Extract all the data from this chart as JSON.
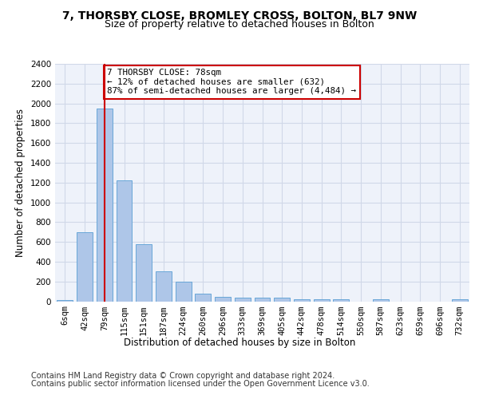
{
  "title_line1": "7, THORSBY CLOSE, BROMLEY CROSS, BOLTON, BL7 9NW",
  "title_line2": "Size of property relative to detached houses in Bolton",
  "xlabel": "Distribution of detached houses by size in Bolton",
  "ylabel": "Number of detached properties",
  "categories": [
    "6sqm",
    "42sqm",
    "79sqm",
    "115sqm",
    "151sqm",
    "187sqm",
    "224sqm",
    "260sqm",
    "296sqm",
    "333sqm",
    "369sqm",
    "405sqm",
    "442sqm",
    "478sqm",
    "514sqm",
    "550sqm",
    "587sqm",
    "623sqm",
    "659sqm",
    "696sqm",
    "732sqm"
  ],
  "values": [
    15,
    700,
    1950,
    1220,
    575,
    305,
    200,
    80,
    47,
    38,
    35,
    35,
    20,
    20,
    20,
    0,
    20,
    0,
    0,
    0,
    20
  ],
  "bar_color": "#aec6e8",
  "bar_edge_color": "#5a9fd4",
  "highlight_index": 2,
  "highlight_color": "#cc0000",
  "annotation_text": "7 THORSBY CLOSE: 78sqm\n← 12% of detached houses are smaller (632)\n87% of semi-detached houses are larger (4,484) →",
  "annotation_box_color": "#ffffff",
  "annotation_box_edgecolor": "#cc0000",
  "ylim": [
    0,
    2400
  ],
  "yticks": [
    0,
    200,
    400,
    600,
    800,
    1000,
    1200,
    1400,
    1600,
    1800,
    2000,
    2200,
    2400
  ],
  "grid_color": "#d0d8e8",
  "background_color": "#eef2fa",
  "footer_line1": "Contains HM Land Registry data © Crown copyright and database right 2024.",
  "footer_line2": "Contains public sector information licensed under the Open Government Licence v3.0.",
  "title_fontsize": 10,
  "subtitle_fontsize": 9,
  "axis_label_fontsize": 8.5,
  "tick_fontsize": 7.5,
  "footer_fontsize": 7
}
